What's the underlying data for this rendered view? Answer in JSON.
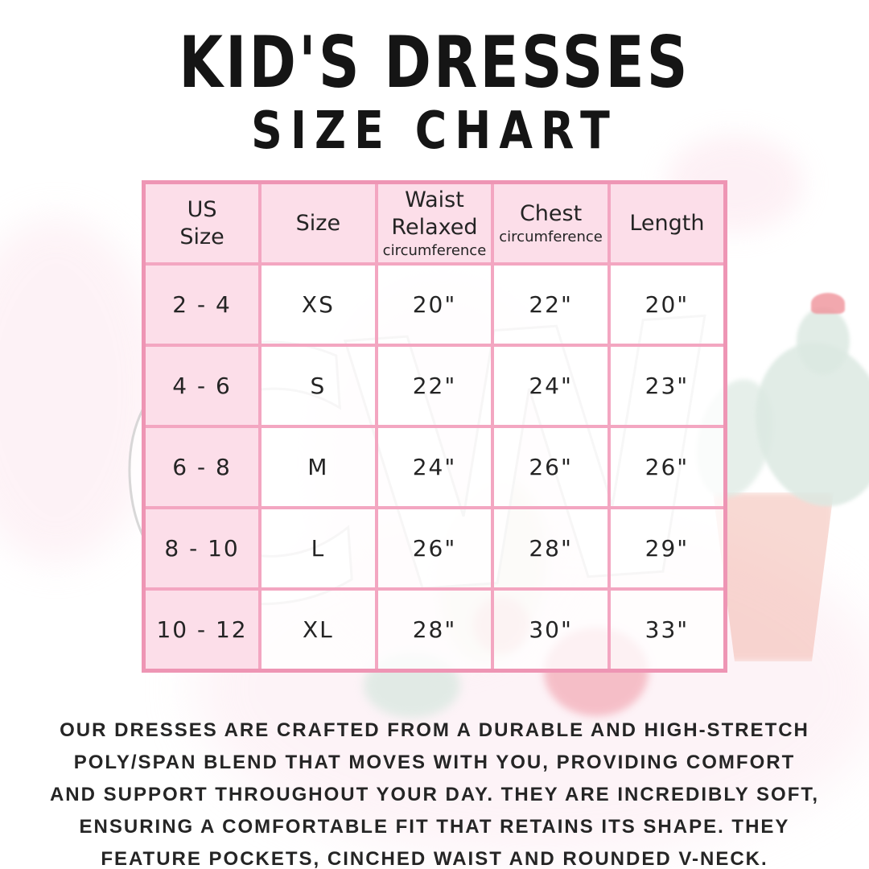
{
  "title": {
    "line1": "KID'S DRESSES",
    "line2": "SIZE CHART"
  },
  "table": {
    "columns": [
      {
        "title": "US\nSize",
        "sub": ""
      },
      {
        "title": "Size",
        "sub": ""
      },
      {
        "title": "Waist\nRelaxed",
        "sub": "circumference"
      },
      {
        "title": "Chest",
        "sub": "circumference"
      },
      {
        "title": "Length",
        "sub": ""
      }
    ],
    "rows": [
      {
        "us": "2 - 4",
        "size": "XS",
        "waist": "20\"",
        "chest": "22\"",
        "len": "20\""
      },
      {
        "us": "4 - 6",
        "size": "S",
        "waist": "22\"",
        "chest": "24\"",
        "len": "23\""
      },
      {
        "us": "6 - 8",
        "size": "M",
        "waist": "24\"",
        "chest": "26\"",
        "len": "26\""
      },
      {
        "us": "8 - 10",
        "size": "L",
        "waist": "26\"",
        "chest": "28\"",
        "len": "29\""
      },
      {
        "us": "10 - 12",
        "size": "XL",
        "waist": "28\"",
        "chest": "30\"",
        "len": "33\""
      }
    ]
  },
  "description": "OUR DRESSES ARE CRAFTED FROM A DURABLE AND HIGH-STRETCH\nPOLY/SPAN BLEND THAT MOVES WITH YOU, PROVIDING COMFORT\nAND SUPPORT THROUGHOUT YOUR DAY. THEY ARE INCREDIBLY SOFT,\nENSURING A COMFORTABLE FIT THAT RETAINS ITS SHAPE. THEY\nFEATURE POCKETS, CINCHED WAIST AND ROUNDED V-NECK.",
  "watermark": {
    "monogram": "CW"
  },
  "colors": {
    "cell_pink": "#fcdee9",
    "border_pink": "#f3a6c1",
    "outer_border_pink": "#ee95b4",
    "text_black": "#1f1f1f",
    "cactus_sage": "#dce9e2",
    "pot_coral": "#f2b4a8",
    "flower_coral": "#f0939b",
    "splash_pink": "#fbdfe9"
  }
}
